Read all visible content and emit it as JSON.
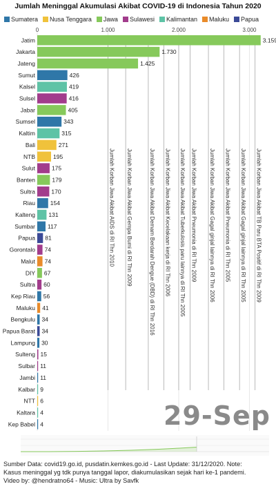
{
  "title": "Jumlah Meninggal Akumulasi Akibat COVID-19 di Indonesia Tahun 2020",
  "legend": [
    {
      "name": "Sumatera",
      "color": "#2f77a8"
    },
    {
      "name": "Nusa Tenggara",
      "color": "#f0c23b"
    },
    {
      "name": "Jawa",
      "color": "#86c95b"
    },
    {
      "name": "Sulawesi",
      "color": "#a23c8c"
    },
    {
      "name": "Kalimantan",
      "color": "#5ec3a6"
    },
    {
      "name": "Maluku",
      "color": "#e98b2a"
    },
    {
      "name": "Papua",
      "color": "#3b4a97"
    }
  ],
  "date_label": "29-Sep",
  "footer": {
    "line1": "Sumber Data: covid19.go.id, pusdatin.kemkes.go.id - Last Update: 31/12/2020. Note:",
    "line2": "Kasus meninggal yg tdk punya tanggal lapor, diakumulasikan sejak hari ke-1 pandemi.",
    "line3": "Video by: @hendratno64 - Music: Ultra by Savfk"
  },
  "chart_data": {
    "type": "bar",
    "orientation": "horizontal",
    "title": "Jumlah Meninggal Akumulasi Akibat COVID-19 di Indonesia Tahun 2020",
    "xlim": [
      0,
      3200
    ],
    "x_ticks": [
      0,
      1000,
      2000,
      3000
    ],
    "x_tick_labels": [
      "0",
      "1.000",
      "2.000",
      "3.000"
    ],
    "grid": true,
    "legend_position": "top",
    "categories": [
      "Jatim",
      "Jakarta",
      "Jateng",
      "Sumut",
      "Kalsel",
      "Sulsel",
      "Jabar",
      "Sumsel",
      "Kaltim",
      "Bali",
      "NTB",
      "Sulut",
      "Banten",
      "Sultra",
      "Riau",
      "Kalteng",
      "Sumbar",
      "Papua",
      "Gorontalo",
      "Malut",
      "DIY",
      "Sultra",
      "Kep Riau",
      "Maluku",
      "Bengkulu",
      "Papua Barat",
      "Lampung",
      "Sulteng",
      "Sulbar",
      "Jambi",
      "Kalbar",
      "NTT",
      "Kaltara",
      "Kep Babel"
    ],
    "values": [
      3159,
      1730,
      1425,
      426,
      419,
      416,
      405,
      343,
      315,
      271,
      195,
      175,
      179,
      170,
      154,
      131,
      117,
      81,
      74,
      74,
      67,
      60,
      56,
      41,
      34,
      34,
      30,
      15,
      11,
      11,
      9,
      6,
      4,
      4
    ],
    "value_labels": [
      "3.159",
      "1.730",
      "1.425",
      "426",
      "419",
      "416",
      "405",
      "343",
      "315",
      "271",
      "195",
      "175",
      "179",
      "170",
      "154",
      "131",
      "117",
      "81",
      "74",
      "74",
      "67",
      "60",
      "56",
      "41",
      "34",
      "34",
      "30",
      "15",
      "11",
      "11",
      "9",
      "6",
      "4",
      "4"
    ],
    "regions": [
      "Jawa",
      "Jawa",
      "Jawa",
      "Sumatera",
      "Kalimantan",
      "Sulawesi",
      "Jawa",
      "Sumatera",
      "Kalimantan",
      "Nusa Tenggara",
      "Nusa Tenggara",
      "Sulawesi",
      "Jawa",
      "Sulawesi",
      "Sumatera",
      "Kalimantan",
      "Sumatera",
      "Papua",
      "Sulawesi",
      "Maluku",
      "Jawa",
      "Sulawesi",
      "Sumatera",
      "Maluku",
      "Sumatera",
      "Papua",
      "Sumatera",
      "Sulawesi",
      "Sulawesi",
      "Sumatera",
      "Kalimantan",
      "Nusa Tenggara",
      "Kalimantan",
      "Sumatera"
    ],
    "annotations": [
      {
        "text": "Jumlah Korban Jiwa Akibat AIDS di RI Thn 2010",
        "value": 1000
      },
      {
        "text": "Jumlah Korban Jiwa Akibat Gempa Bumi di RI Thn 2009",
        "value": 1250
      },
      {
        "text": "Jumlah Korban Jiwa Akibat Demam Berdarah Dengue (DBD) di RI Thn 2016",
        "value": 1570
      },
      {
        "text": "Jumlah Korban Jiwa Akibat Kecelakaan kerja di RI Thn 2006",
        "value": 1790
      },
      {
        "text": "Jumlah Korban Jiwa Akibat Tuberkulosis paru lainnya di RI Thn 2005",
        "value": 2000
      },
      {
        "text": "Jumlah Korban Jiwa Akibat Pneumonia di RI Thn 2009",
        "value": 2160
      },
      {
        "text": "Jumlah Korban Jiwa Akibat Gagal ginjal lainnya di RI Thn 2006",
        "value": 2420
      },
      {
        "text": "Jumlah Korban Jiwa Akibat Pneumonia di RI Thn 2005",
        "value": 2640
      },
      {
        "text": "Jumlah Korban Jiwa Akibat Gagal ginjal lainnya di RI Thn 2005",
        "value": 2860
      },
      {
        "text": "Jumlah Korban Jiwa Akibat TB Paru BTA Positif di RI Thn 2009",
        "value": 3080
      }
    ]
  }
}
